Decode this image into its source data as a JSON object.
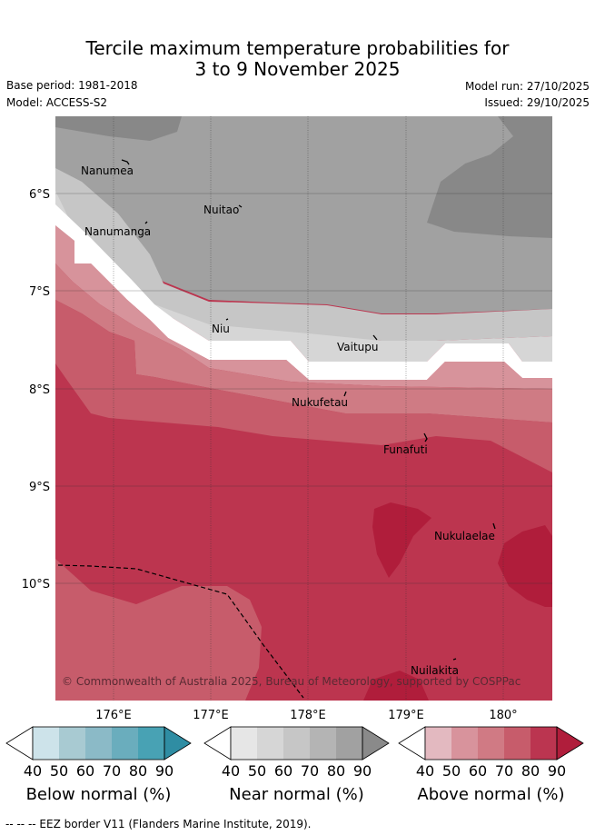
{
  "header": {
    "title_line1": "Tercile maximum temperature probabilities for",
    "title_line2": "3 to 9 November 2025",
    "base_period": "Base period: 1981-2018",
    "model": "Model: ACCESS-S2",
    "model_run": "Model run: 27/10/2025",
    "issued": "Issued: 29/10/2025"
  },
  "chart_data": {
    "type": "heatmap",
    "title": "Tercile maximum temperature probabilities for 3 to 9 November 2025",
    "x_ticks": [
      "176°E",
      "177°E",
      "178°E",
      "179°E",
      "180°"
    ],
    "y_ticks": [
      "6°S",
      "7°S",
      "8°S",
      "9°S",
      "10°S"
    ],
    "x_range": [
      175.4,
      180.5
    ],
    "y_range": [
      -11.2,
      -5.2
    ],
    "grid": true,
    "places": [
      {
        "name": "Nanumea",
        "lon": 176.1,
        "lat": -5.67
      },
      {
        "name": "Nuitao",
        "lon": 177.33,
        "lat": -6.11
      },
      {
        "name": "Nanumanga",
        "lon": 176.32,
        "lat": -6.28
      },
      {
        "name": "Niu",
        "lon": 177.15,
        "lat": -7.22
      },
      {
        "name": "Vaitupu",
        "lon": 178.68,
        "lat": -7.48
      },
      {
        "name": "Nukufetau",
        "lon": 178.39,
        "lat": -8.02
      },
      {
        "name": "Funafuti",
        "lon": 179.2,
        "lat": -8.52
      },
      {
        "name": "Nukulaelae",
        "lon": 179.85,
        "lat": -9.38
      },
      {
        "name": "Nuilakita",
        "lon": 179.51,
        "lat": -10.82
      }
    ],
    "colorbars": [
      {
        "name": "Below normal (%)",
        "ticks": [
          "40",
          "50",
          "60",
          "70",
          "80",
          "90"
        ],
        "colors": [
          "#cde3ea",
          "#a8cad2",
          "#8bbac7",
          "#6aadbd",
          "#48a2b4",
          "#2f8da3"
        ]
      },
      {
        "name": "Near normal (%)",
        "ticks": [
          "40",
          "50",
          "60",
          "70",
          "80",
          "90"
        ],
        "colors": [
          "#e6e6e6",
          "#d6d6d6",
          "#c6c6c6",
          "#b4b4b4",
          "#a1a1a1",
          "#8a8a8a"
        ]
      },
      {
        "name": "Above normal (%)",
        "ticks": [
          "40",
          "50",
          "60",
          "70",
          "80",
          "90"
        ],
        "colors": [
          "#e3b9c0",
          "#d8939c",
          "#d07a84",
          "#c75c6b",
          "#bb3550",
          "#b01d3b"
        ]
      }
    ],
    "eez_border_label": "EEZ border",
    "attribution": "© Commonwealth of Australia 2025, Bureau of Meteorology, supported by COSPPac"
  },
  "footer": {
    "legend": "--  --  -- EEZ border V11 (Flanders Marine Institute, 2019)."
  }
}
